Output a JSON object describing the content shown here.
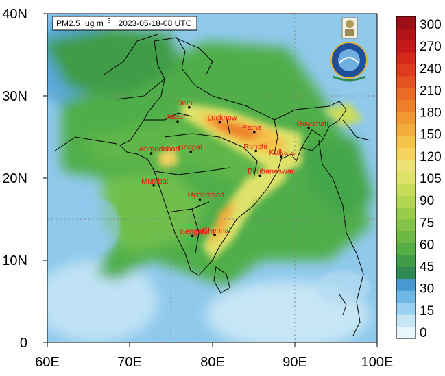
{
  "title": {
    "variable": "PM2.5",
    "unit": "ug m",
    "unit_exp": "-3",
    "time": "2023-05-18-08 UTC"
  },
  "axes": {
    "x_ticks": [
      "60E",
      "70E",
      "80E",
      "90E",
      "100E"
    ],
    "y_ticks": [
      "40N",
      "30N",
      "20N",
      "10N",
      "0"
    ],
    "x_range_deg": [
      60,
      100
    ],
    "y_range_deg": [
      0,
      40
    ],
    "dashed_grid": {
      "lon": [
        75,
        90
      ],
      "lat": [
        15,
        30
      ]
    }
  },
  "colorbar": {
    "labels": [
      "300",
      "270",
      "240",
      "210",
      "180",
      "150",
      "120",
      "105",
      "90",
      "75",
      "60",
      "45",
      "30",
      "15",
      "0"
    ],
    "colors": [
      "#e8f6fb",
      "#c6e6f6",
      "#99d0f0",
      "#6fb8e6",
      "#4a98d0",
      "#2f8a52",
      "#3f9c47",
      "#55ad45",
      "#6db944",
      "#84c347",
      "#99cc4a",
      "#b2d552",
      "#c9dc5a",
      "#dee26a",
      "#ede077",
      "#f5d35e",
      "#f5c24a",
      "#f3ad3c",
      "#f19733",
      "#ee802c",
      "#ea6a27",
      "#e55222",
      "#de3c1e",
      "#d4281b",
      "#c41a19",
      "#b01418",
      "#9a1016"
    ]
  },
  "cities": [
    {
      "name": "Delhi",
      "lon": 77.2,
      "lat": 28.6
    },
    {
      "name": "Jaipur",
      "lon": 75.8,
      "lat": 26.9
    },
    {
      "name": "Lucknow",
      "lon": 80.9,
      "lat": 26.8
    },
    {
      "name": "Patna",
      "lon": 85.1,
      "lat": 25.6
    },
    {
      "name": "Guwahati",
      "lon": 91.7,
      "lat": 26.1
    },
    {
      "name": "Ahmedabad",
      "lon": 72.6,
      "lat": 23.0
    },
    {
      "name": "Bhopal",
      "lon": 77.4,
      "lat": 23.2
    },
    {
      "name": "Ranchi",
      "lon": 85.3,
      "lat": 23.3
    },
    {
      "name": "Kolkata",
      "lon": 88.4,
      "lat": 22.6
    },
    {
      "name": "Mumbai",
      "lon": 72.9,
      "lat": 19.1
    },
    {
      "name": "Bhubaneswar",
      "lon": 85.8,
      "lat": 20.3
    },
    {
      "name": "Hyderabad",
      "lon": 78.5,
      "lat": 17.4
    },
    {
      "name": "Chennai",
      "lon": 80.3,
      "lat": 13.1
    },
    {
      "name": "Bengaluru",
      "lon": 77.6,
      "lat": 12.97
    }
  ],
  "colors": {
    "city_label": "#e8140f",
    "boundary": "#000000"
  }
}
